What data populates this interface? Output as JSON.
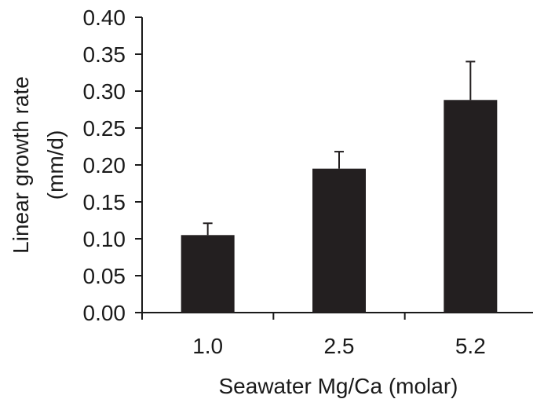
{
  "chart_data": {
    "type": "bar",
    "categories": [
      "1.0",
      "2.5",
      "5.2"
    ],
    "values": [
      0.105,
      0.195,
      0.288
    ],
    "error_upper": [
      0.121,
      0.218,
      0.34
    ],
    "xlabel": "Seawater Mg/Ca (molar)",
    "ylabel_line1": "Linear growth rate",
    "ylabel_line2": "(mm/d)",
    "ylim": [
      0,
      0.4
    ],
    "yticks": [
      "0.00",
      "0.05",
      "0.10",
      "0.15",
      "0.20",
      "0.25",
      "0.30",
      "0.35",
      "0.40"
    ],
    "grid": false,
    "bar_color": "#231f20"
  }
}
